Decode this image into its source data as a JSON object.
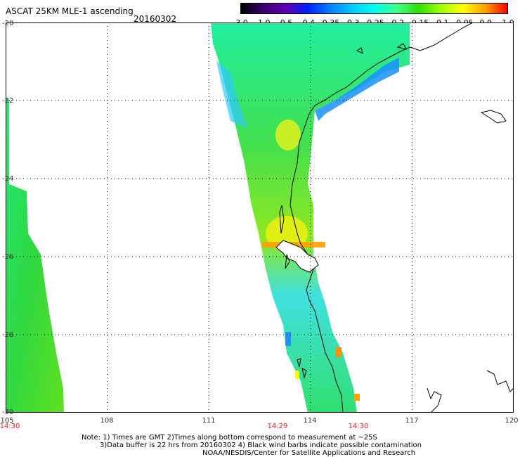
{
  "header": {
    "title": "ASCAT 25KM MLE-1 ascending",
    "date": "20160302"
  },
  "colorbar": {
    "labels": [
      "-3.0",
      "-1.0",
      "-0.5",
      "-0.4",
      "-0.35",
      "-0.3",
      "-0.25",
      "-0.2",
      "-0.15",
      "-0.1",
      "-0.05",
      "0.0",
      "1.0"
    ],
    "colors": [
      "#000000",
      "#3a0070",
      "#6000b0",
      "#0020ff",
      "#0080ff",
      "#00c8ff",
      "#00ffee",
      "#40ff90",
      "#30e000",
      "#a0ff00",
      "#ffff00",
      "#ffa000",
      "#ff0000"
    ]
  },
  "axes": {
    "latitudes": [
      "-20",
      "-22",
      "-24",
      "-26",
      "-28",
      "-30"
    ],
    "longitudes": [
      "105",
      "108",
      "111",
      "114",
      "117",
      "120"
    ],
    "times": [
      "14:30",
      "14:29",
      "14:30"
    ]
  },
  "notes": {
    "line1": "Note: 1) Times are GMT 2)Times along bottom correspond to measurement at ~25S",
    "line2": "3)Data buffer is 22 hrs from 20160302 4) Black wind barbs indicate possible contamination",
    "line3": "NOAA/NESDIS/Center for Satellite Applications and Research"
  }
}
